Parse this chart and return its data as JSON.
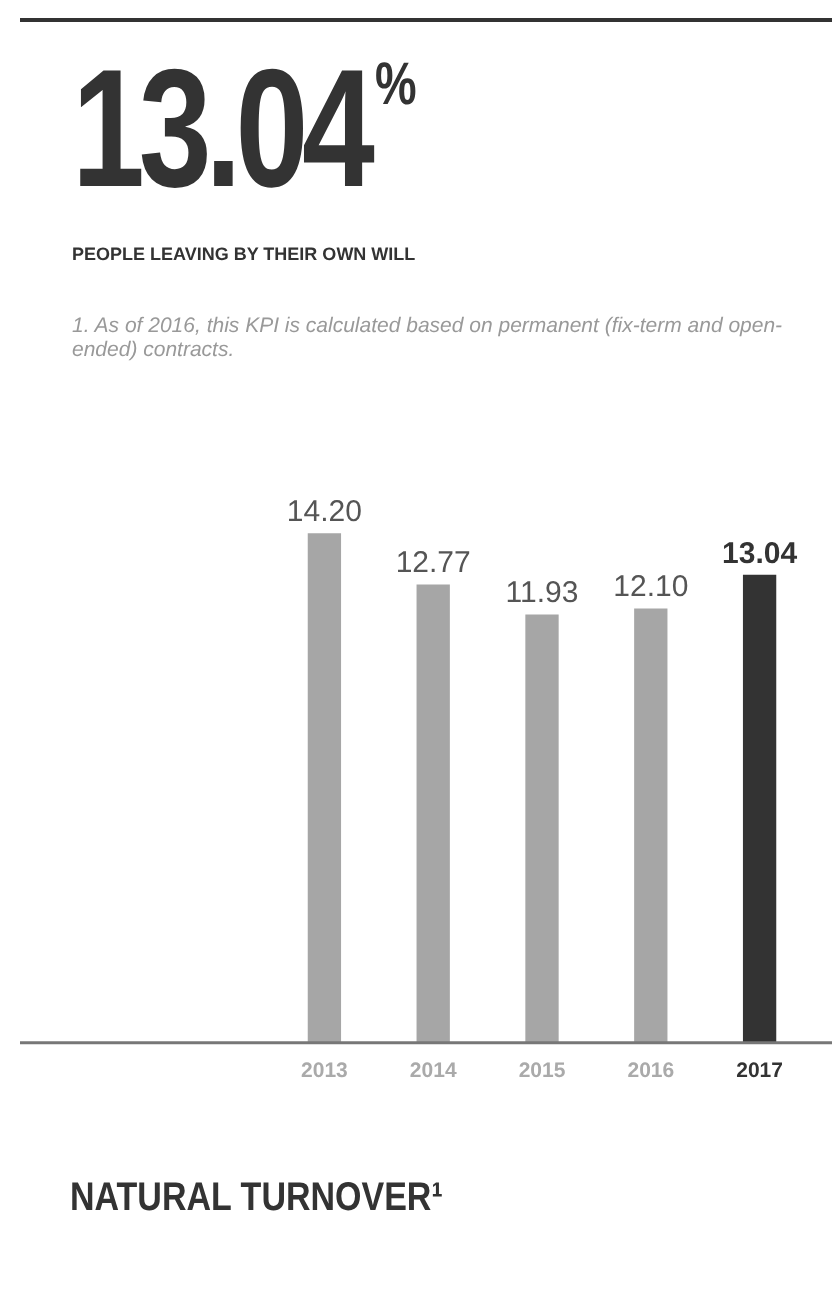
{
  "chart_data": {
    "type": "bar",
    "title": "NATURAL TURNOVER¹",
    "subtitle": "PEOPLE LEAVING BY THEIR OWN WILL",
    "annotations": [
      "13.04$^{%}$",
      "1. As of 2016, this KPI is calculated based on permanent (fix-term and open-ended) contracts."
    ],
    "categories": [
      "2013",
      "2014",
      "2015",
      "2016",
      "2017"
    ],
    "values": [
      14.2,
      12.77,
      11.93,
      12.1,
      13.04
    ],
    "colors": [
      "#a6a6a6",
      "#a6a6a6",
      "#a6a6a6",
      "#a6a6a6",
      "#333333"
    ],
    "value_labels": [
      "14.20",
      "12.77",
      "11.93",
      "12.10",
      "13.04"
    ],
    "grid": false,
    "legend": false,
    "tick_labels": "x"
  }
}
